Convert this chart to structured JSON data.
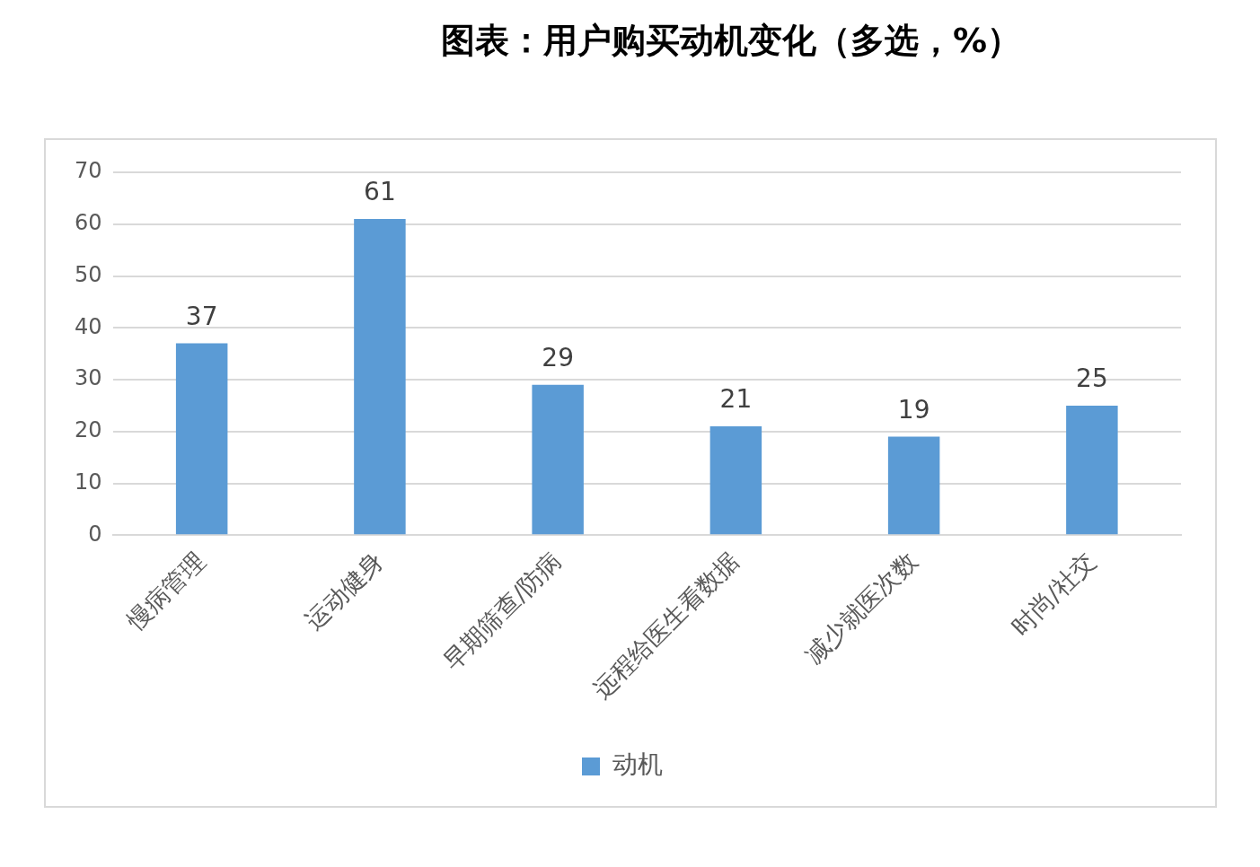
{
  "chart_data": {
    "type": "bar",
    "title": "图表：用户购买动机变化（多选，%）",
    "categories": [
      "慢病管理",
      "运动健身",
      "早期筛查/防病",
      "远程给医生看数据",
      "减少就医次数",
      "时尚/社交"
    ],
    "series": [
      {
        "name": "动机",
        "color": "#5b9bd5",
        "values": [
          37,
          61,
          29,
          21,
          19,
          25
        ]
      }
    ],
    "ylim": [
      0,
      70
    ],
    "yticks": [
      0,
      10,
      20,
      30,
      40,
      50,
      60,
      70
    ],
    "grid": "y",
    "legend": "bottom",
    "data_labels": true
  }
}
